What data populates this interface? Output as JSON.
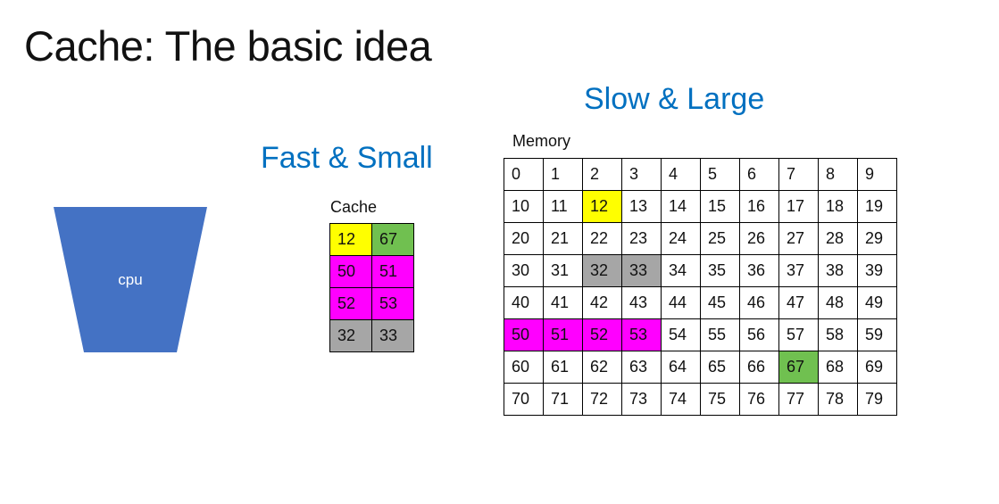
{
  "slide": {
    "title": "Cache: The basic idea"
  },
  "headings": {
    "fast": "Fast & Small",
    "slow": "Slow & Large"
  },
  "cpu": {
    "label": "cpu",
    "color": "#4472c4"
  },
  "cache": {
    "label": "Cache",
    "rows": [
      [
        {
          "value": "12",
          "color": "#ffff00"
        },
        {
          "value": "67",
          "color": "#70c050"
        }
      ],
      [
        {
          "value": "50",
          "color": "#ff00ff"
        },
        {
          "value": "51",
          "color": "#ff00ff"
        }
      ],
      [
        {
          "value": "52",
          "color": "#ff00ff"
        },
        {
          "value": "53",
          "color": "#ff00ff"
        }
      ],
      [
        {
          "value": "32",
          "color": "#a6a6a6"
        },
        {
          "value": "33",
          "color": "#a6a6a6"
        }
      ]
    ]
  },
  "memory": {
    "label": "Memory",
    "rows": [
      [
        "0",
        "1",
        "2",
        "3",
        "4",
        "5",
        "6",
        "7",
        "8",
        "9"
      ],
      [
        "10",
        "11",
        "12",
        "13",
        "14",
        "15",
        "16",
        "17",
        "18",
        "19"
      ],
      [
        "20",
        "21",
        "22",
        "23",
        "24",
        "25",
        "26",
        "27",
        "28",
        "29"
      ],
      [
        "30",
        "31",
        "32",
        "33",
        "34",
        "35",
        "36",
        "37",
        "38",
        "39"
      ],
      [
        "40",
        "41",
        "42",
        "43",
        "44",
        "45",
        "46",
        "47",
        "48",
        "49"
      ],
      [
        "50",
        "51",
        "52",
        "53",
        "54",
        "55",
        "56",
        "57",
        "58",
        "59"
      ],
      [
        "60",
        "61",
        "62",
        "63",
        "64",
        "65",
        "66",
        "67",
        "68",
        "69"
      ],
      [
        "70",
        "71",
        "72",
        "73",
        "74",
        "75",
        "76",
        "77",
        "78",
        "79"
      ]
    ],
    "highlights": {
      "12": "#ffff00",
      "67": "#70c050",
      "50": "#ff00ff",
      "51": "#ff00ff",
      "52": "#ff00ff",
      "53": "#ff00ff",
      "32": "#a6a6a6",
      "33": "#a6a6a6"
    }
  }
}
